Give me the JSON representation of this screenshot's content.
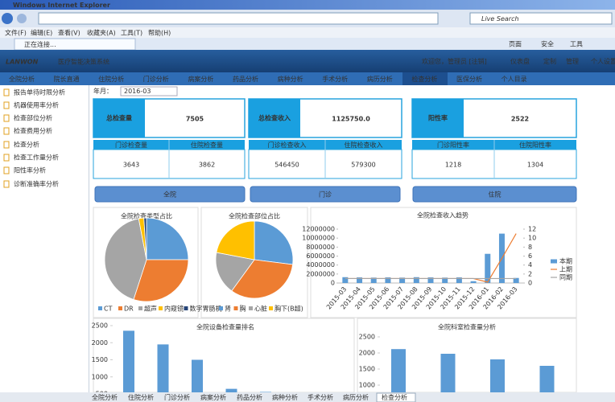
{
  "browser": {
    "title": "Windows Internet Explorer",
    "search": "Live Search",
    "menu": [
      "文件(F)",
      "编辑(E)",
      "查看(V)",
      "收藏夹(A)",
      "工具(T)",
      "帮助(H)"
    ],
    "tab": "正在连接...",
    "tools": [
      "页面",
      "安全",
      "工具"
    ]
  },
  "app": {
    "logo": "LANWON",
    "name": "医疗智能决策系统",
    "welcome": "欢迎您，管理员 [注销]",
    "links": [
      "仪表盘",
      "定制",
      "管理",
      "个人设置"
    ]
  },
  "nav": [
    "全院分析",
    "院长直通",
    "住院分析",
    "门诊分析",
    "病案分析",
    "药品分析",
    "病种分析",
    "手术分析",
    "病历分析",
    "检查分析",
    "医保分析",
    "个人目录"
  ],
  "sidebar": [
    "报告单待时限分析",
    "机器使用率分析",
    "检查部位分析",
    "检查费用分析",
    "检查分析",
    "检查工作量分析",
    "阳性率分析",
    "诊断准确率分析"
  ],
  "filter": {
    "label": "年月：",
    "value": "2016-03"
  },
  "kpis": [
    {
      "title": "总检查量",
      "value": "7505",
      "subs": [
        {
          "label": "门诊检查量",
          "value": "3643"
        },
        {
          "label": "住院检查量",
          "value": "3862"
        }
      ]
    },
    {
      "title": "总检查收入",
      "value": "1125750.0",
      "subs": [
        {
          "label": "门诊检查收入",
          "value": "546450"
        },
        {
          "label": "住院检查收入",
          "value": "579300"
        }
      ]
    },
    {
      "title": "阳性率",
      "value": "2522",
      "subs": [
        {
          "label": "门诊阳性率",
          "value": "1218"
        },
        {
          "label": "住院阳性率",
          "value": "1304"
        }
      ]
    }
  ],
  "buttons": [
    "全院",
    "门诊",
    "住院"
  ],
  "charts": [
    {
      "type": "pie",
      "title": "全院检查类型占比",
      "categories": [
        "CT",
        "DR",
        "超声",
        "内窥镜",
        "数字胃肠机"
      ],
      "values": [
        25,
        30,
        42,
        2,
        1
      ],
      "colors": [
        "#5b9bd5",
        "#ed7d31",
        "#a5a5a5",
        "#ffc000",
        "#264478"
      ]
    },
    {
      "type": "pie",
      "title": "全院检查部位占比",
      "categories": [
        "肾",
        "胸",
        "心脏",
        "胸下(B超)"
      ],
      "values": [
        27,
        33,
        18,
        22
      ],
      "colors": [
        "#5b9bd5",
        "#ed7d31",
        "#a5a5a5",
        "#ffc000"
      ]
    },
    {
      "type": "combo",
      "title": "全院检查收入趋势",
      "categories": [
        "2015-03",
        "2015-04",
        "2015-05",
        "2015-06",
        "2015-07",
        "2015-08",
        "2015-09",
        "2015-10",
        "2015-11",
        "2015-12",
        "2016-01",
        "2016-02",
        "2016-03"
      ],
      "series": [
        {
          "name": "本期",
          "type": "bar",
          "color": "#5b9bd5",
          "values": [
            1300000,
            1250000,
            1200000,
            1250000,
            1200000,
            1300000,
            1250000,
            1200000,
            1250000,
            400000,
            6500000,
            11000000,
            1125750
          ]
        },
        {
          "name": "上期",
          "type": "line",
          "axis": "y2",
          "color": "#ed7d31",
          "values": [
            1,
            1,
            1,
            1,
            1,
            1,
            1,
            1,
            1,
            1,
            0.2,
            5.5,
            11
          ]
        },
        {
          "name": "同期",
          "type": "line",
          "axis": "y2",
          "color": "#a5a5a5",
          "values": [
            1,
            1,
            1,
            1,
            1,
            1,
            1,
            1,
            1,
            1,
            1,
            1,
            1
          ]
        }
      ],
      "ylim": [
        0,
        12000000
      ],
      "yticks": [
        0,
        2000000,
        4000000,
        6000000,
        8000000,
        10000000,
        12000000
      ],
      "y2lim": [
        0,
        12
      ],
      "y2ticks": [
        0,
        2,
        4,
        6,
        8,
        10,
        12
      ]
    },
    {
      "type": "bar",
      "title": "全院设备检查量排名",
      "categories": [
        null,
        null,
        null,
        null,
        null
      ],
      "values": [
        2350,
        1950,
        1500,
        650,
        560
      ],
      "color": "#5b9bd5",
      "ylim": [
        0,
        2500
      ],
      "yticks": [
        500,
        1000,
        1500,
        2000,
        2500
      ]
    },
    {
      "type": "bar",
      "title": "全院科室检查量分析",
      "categories": [
        null,
        null,
        null,
        null
      ],
      "values": [
        2120,
        1975,
        1800,
        1600
      ],
      "color": "#5b9bd5",
      "ylim": [
        0,
        2500
      ],
      "yticks": [
        500,
        1000,
        1500,
        2000,
        2500
      ]
    }
  ],
  "tabs": [
    "全院分析",
    "住院分析",
    "门诊分析",
    "病案分析",
    "药品分析",
    "病种分析",
    "手术分析",
    "病历分析",
    "检查分析"
  ]
}
